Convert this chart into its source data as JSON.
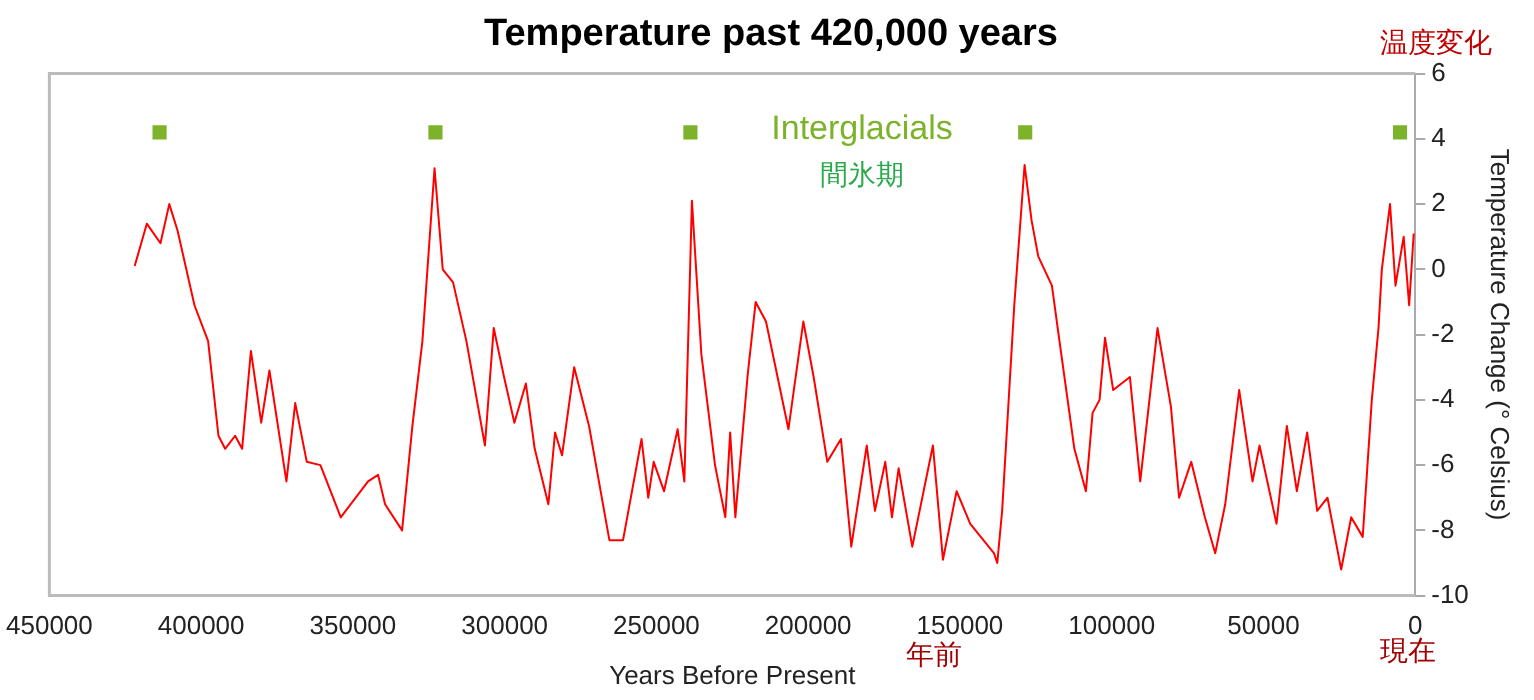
{
  "chart_data": {
    "type": "line",
    "title": "Temperature past 420,000 years",
    "xlabel": "Years Before Present",
    "ylabel": "Temperature Change (° Celsius)",
    "xlim": [
      450000,
      0
    ],
    "xticks": [
      450000,
      400000,
      350000,
      300000,
      250000,
      200000,
      150000,
      100000,
      50000,
      0
    ],
    "ylim": [
      -10,
      6
    ],
    "yticks": [
      -10,
      -8,
      -6,
      -4,
      -2,
      0,
      2,
      4,
      6
    ],
    "grid": false,
    "legend": "top",
    "tick_labels": true,
    "annotations": [
      "温度変化",
      "間氷期",
      "年前",
      "現在"
    ],
    "series": [
      {
        "color": "#ff0000",
        "line_style": "solid",
        "marker": "none",
        "x": [
          421900,
          417900,
          413400,
          410500,
          407800,
          402200,
          397700,
          394300,
          392100,
          388800,
          386500,
          383600,
          380200,
          377500,
          371900,
          369000,
          365200,
          360700,
          354000,
          345000,
          341700,
          339400,
          333800,
          330400,
          327100,
          323100,
          320400,
          317000,
          312600,
          306500,
          303600,
          300200,
          296800,
          293000,
          290100,
          285600,
          283400,
          281100,
          277100,
          272200,
          265500,
          261000,
          254900,
          252700,
          250900,
          247500,
          243000,
          240800,
          238300,
          235200,
          230700,
          227300,
          225700,
          224000,
          219900,
          217300,
          213900,
          206500,
          201600,
          198200,
          193700,
          189200,
          185800,
          180700,
          178000,
          174600,
          172400,
          170200,
          165700,
          158900,
          155600,
          151100,
          146600,
          138800,
          137700,
          136100,
          132100,
          128700,
          126400,
          124200,
          119700,
          117500,
          112300,
          108500,
          106300,
          104000,
          102200,
          99500,
          94000,
          90600,
          84900,
          80500,
          77800,
          73800,
          69300,
          65900,
          62600,
          58000,
          53600,
          51300,
          45700,
          42300,
          39000,
          35600,
          32300,
          28900,
          24400,
          21100,
          17300,
          14300,
          12100,
          11000,
          8300,
          6500,
          3800,
          2000,
          500
        ],
        "values": [
          0.1,
          1.4,
          0.8,
          2.0,
          1.2,
          -1.1,
          -2.2,
          -5.1,
          -5.5,
          -5.1,
          -5.5,
          -2.5,
          -4.7,
          -3.1,
          -6.5,
          -4.1,
          -5.9,
          -6.0,
          -7.6,
          -6.5,
          -6.3,
          -7.2,
          -8.0,
          -4.8,
          -2.2,
          3.1,
          0.0,
          -0.4,
          -2.2,
          -5.4,
          -1.8,
          -3.3,
          -4.7,
          -3.5,
          -5.5,
          -7.2,
          -5.0,
          -5.7,
          -3.0,
          -4.8,
          -8.3,
          -8.3,
          -5.2,
          -7.0,
          -5.9,
          -6.8,
          -4.9,
          -6.5,
          2.1,
          -2.6,
          -6.0,
          -7.6,
          -5.0,
          -7.6,
          -3.2,
          -1.0,
          -1.6,
          -4.9,
          -1.6,
          -3.3,
          -5.9,
          -5.2,
          -8.5,
          -5.4,
          -7.4,
          -5.9,
          -7.6,
          -6.1,
          -8.5,
          -5.4,
          -8.9,
          -6.8,
          -7.8,
          -8.7,
          -9.0,
          -7.4,
          -1.1,
          3.2,
          1.5,
          0.4,
          -0.5,
          -2.0,
          -5.5,
          -6.8,
          -4.4,
          -4.0,
          -2.1,
          -3.7,
          -3.3,
          -6.5,
          -1.8,
          -4.2,
          -7.0,
          -5.9,
          -7.6,
          -8.7,
          -7.2,
          -3.7,
          -6.5,
          -5.4,
          -7.8,
          -4.8,
          -6.8,
          -5.0,
          -7.4,
          -7.0,
          -9.2,
          -7.6,
          -8.2,
          -4.0,
          -1.8,
          0.0,
          2.0,
          -0.5,
          1.0,
          -1.1,
          1.1
        ]
      },
      {
        "name": "Interglacials",
        "type": "scatter",
        "color": "#7cb32a",
        "marker": "square",
        "x": [
          413700,
          322800,
          238800,
          128500,
          5000
        ],
        "values": [
          4.2,
          4.2,
          4.2,
          4.2,
          4.2
        ]
      }
    ]
  }
}
